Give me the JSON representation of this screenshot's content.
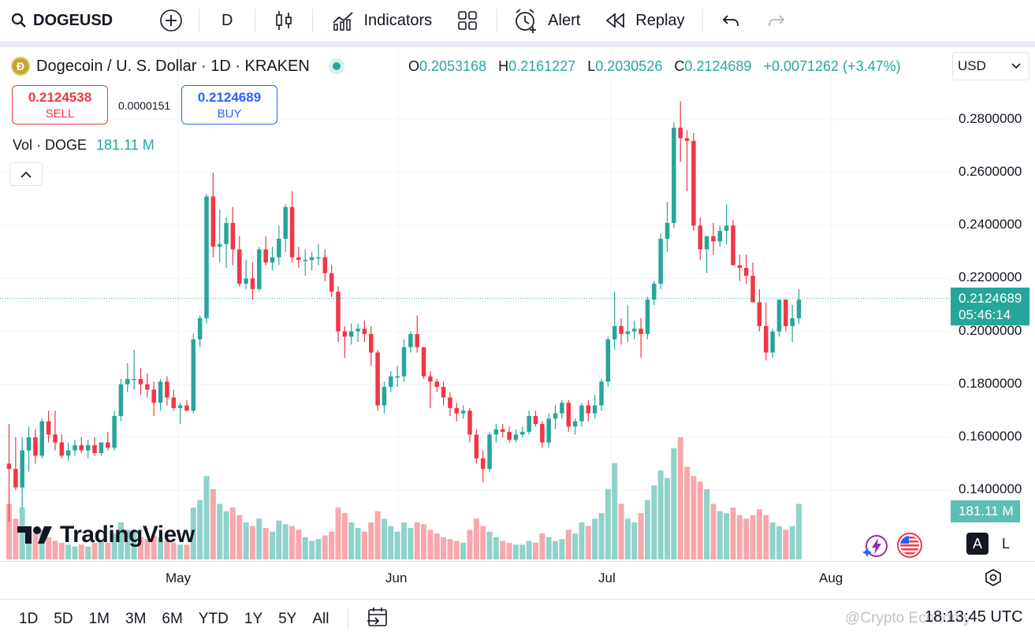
{
  "toolbar": {
    "symbol": "DOGEUSD",
    "interval": "D",
    "indicators_label": "Indicators",
    "alert_label": "Alert",
    "replay_label": "Replay"
  },
  "legend": {
    "title": "Dogecoin / U. S. Dollar · 1D · KRAKEN",
    "o_label": "O",
    "o": "0.2053168",
    "h_label": "H",
    "h": "0.2161227",
    "l_label": "L",
    "l": "0.2030526",
    "c_label": "C",
    "c": "0.2124689",
    "change": "+0.0071262 (+3.47%)"
  },
  "currency": "USD",
  "trade": {
    "sell_price": "0.2124538",
    "sell_label": "SELL",
    "spread": "0.0000151",
    "buy_price": "0.2124689",
    "buy_label": "BUY"
  },
  "volume": {
    "label": "Vol · DOGE",
    "value": "181.11 M"
  },
  "price_scale": [
    "0.2800000",
    "0.2600000",
    "0.2400000",
    "0.2200000",
    "0.2000000",
    "0.1800000",
    "0.1600000",
    "0.1400000"
  ],
  "last_price": {
    "price": "0.2124689",
    "countdown": "05:46:14"
  },
  "volume_badge": "181.11 M",
  "logo_text": "TradingView",
  "time_axis": [
    "May",
    "Jun",
    "Jul",
    "Aug"
  ],
  "panel_buttons": {
    "log": "L",
    "auto": "A"
  },
  "ranges": [
    "1D",
    "5D",
    "1M",
    "3M",
    "6M",
    "YTD",
    "1Y",
    "5Y",
    "All"
  ],
  "clock": "18:13:45 UTC",
  "watermark": "@Crypto Economy",
  "colors": {
    "up": "#26a69a",
    "down": "#f23645",
    "vol_up": "#8fd3ca",
    "vol_down": "#f7a8ad"
  },
  "chart_data": {
    "type": "candlestick",
    "ylim": [
      0.13,
      0.295
    ],
    "month_labels": [
      "May",
      "Jun",
      "Jul",
      "Aug"
    ],
    "candles": [
      [
        0.15,
        0.165,
        0.128,
        0.148,
        30
      ],
      [
        0.148,
        0.16,
        0.14,
        0.141,
        22
      ],
      [
        0.141,
        0.16,
        0.133,
        0.155,
        28
      ],
      [
        0.155,
        0.164,
        0.147,
        0.16,
        18
      ],
      [
        0.16,
        0.163,
        0.15,
        0.153,
        14
      ],
      [
        0.153,
        0.167,
        0.152,
        0.166,
        16
      ],
      [
        0.166,
        0.17,
        0.158,
        0.161,
        12
      ],
      [
        0.161,
        0.17,
        0.155,
        0.158,
        10
      ],
      [
        0.158,
        0.161,
        0.152,
        0.153,
        9
      ],
      [
        0.153,
        0.158,
        0.151,
        0.155,
        8
      ],
      [
        0.155,
        0.159,
        0.153,
        0.157,
        7
      ],
      [
        0.157,
        0.16,
        0.154,
        0.155,
        8
      ],
      [
        0.155,
        0.159,
        0.152,
        0.157,
        7
      ],
      [
        0.157,
        0.16,
        0.153,
        0.154,
        9
      ],
      [
        0.154,
        0.158,
        0.153,
        0.158,
        10
      ],
      [
        0.158,
        0.162,
        0.155,
        0.156,
        9
      ],
      [
        0.156,
        0.17,
        0.155,
        0.168,
        14
      ],
      [
        0.168,
        0.182,
        0.166,
        0.18,
        20
      ],
      [
        0.18,
        0.188,
        0.177,
        0.182,
        16
      ],
      [
        0.182,
        0.193,
        0.178,
        0.182,
        15
      ],
      [
        0.182,
        0.186,
        0.176,
        0.18,
        12
      ],
      [
        0.18,
        0.184,
        0.175,
        0.178,
        11
      ],
      [
        0.178,
        0.181,
        0.168,
        0.173,
        13
      ],
      [
        0.173,
        0.182,
        0.17,
        0.181,
        12
      ],
      [
        0.181,
        0.183,
        0.172,
        0.175,
        10
      ],
      [
        0.175,
        0.178,
        0.17,
        0.171,
        9
      ],
      [
        0.171,
        0.173,
        0.165,
        0.172,
        8
      ],
      [
        0.172,
        0.174,
        0.17,
        0.17,
        8
      ],
      [
        0.17,
        0.199,
        0.169,
        0.197,
        28
      ],
      [
        0.197,
        0.206,
        0.194,
        0.205,
        32
      ],
      [
        0.205,
        0.252,
        0.203,
        0.251,
        45
      ],
      [
        0.251,
        0.26,
        0.228,
        0.232,
        38
      ],
      [
        0.232,
        0.246,
        0.226,
        0.233,
        30
      ],
      [
        0.233,
        0.243,
        0.224,
        0.241,
        26
      ],
      [
        0.241,
        0.247,
        0.225,
        0.231,
        28
      ],
      [
        0.231,
        0.236,
        0.217,
        0.218,
        24
      ],
      [
        0.218,
        0.227,
        0.216,
        0.22,
        20
      ],
      [
        0.22,
        0.226,
        0.212,
        0.216,
        18
      ],
      [
        0.216,
        0.232,
        0.215,
        0.231,
        22
      ],
      [
        0.231,
        0.236,
        0.225,
        0.226,
        17
      ],
      [
        0.226,
        0.232,
        0.223,
        0.228,
        15
      ],
      [
        0.228,
        0.24,
        0.225,
        0.235,
        21
      ],
      [
        0.235,
        0.248,
        0.23,
        0.247,
        19
      ],
      [
        0.247,
        0.253,
        0.226,
        0.228,
        18
      ],
      [
        0.228,
        0.232,
        0.224,
        0.227,
        16
      ],
      [
        0.227,
        0.231,
        0.221,
        0.227,
        12
      ],
      [
        0.227,
        0.23,
        0.223,
        0.228,
        10
      ],
      [
        0.228,
        0.233,
        0.225,
        0.228,
        11
      ],
      [
        0.228,
        0.231,
        0.219,
        0.222,
        13
      ],
      [
        0.222,
        0.225,
        0.213,
        0.215,
        15
      ],
      [
        0.215,
        0.217,
        0.196,
        0.2,
        28
      ],
      [
        0.2,
        0.202,
        0.19,
        0.198,
        25
      ],
      [
        0.198,
        0.203,
        0.195,
        0.2,
        20
      ],
      [
        0.2,
        0.203,
        0.196,
        0.201,
        17
      ],
      [
        0.201,
        0.204,
        0.196,
        0.199,
        15
      ],
      [
        0.199,
        0.202,
        0.187,
        0.192,
        20
      ],
      [
        0.192,
        0.193,
        0.17,
        0.172,
        26
      ],
      [
        0.172,
        0.181,
        0.169,
        0.179,
        22
      ],
      [
        0.179,
        0.185,
        0.177,
        0.183,
        18
      ],
      [
        0.183,
        0.187,
        0.179,
        0.183,
        15
      ],
      [
        0.183,
        0.197,
        0.181,
        0.194,
        20
      ],
      [
        0.194,
        0.2,
        0.192,
        0.199,
        17
      ],
      [
        0.199,
        0.206,
        0.192,
        0.194,
        20
      ],
      [
        0.194,
        0.194,
        0.182,
        0.183,
        19
      ],
      [
        0.183,
        0.185,
        0.171,
        0.181,
        16
      ],
      [
        0.181,
        0.182,
        0.177,
        0.179,
        14
      ],
      [
        0.179,
        0.181,
        0.172,
        0.175,
        12
      ],
      [
        0.175,
        0.177,
        0.168,
        0.171,
        11
      ],
      [
        0.171,
        0.173,
        0.166,
        0.169,
        10
      ],
      [
        0.169,
        0.172,
        0.167,
        0.17,
        9
      ],
      [
        0.17,
        0.171,
        0.158,
        0.161,
        16
      ],
      [
        0.161,
        0.163,
        0.15,
        0.152,
        22
      ],
      [
        0.152,
        0.155,
        0.143,
        0.148,
        18
      ],
      [
        0.148,
        0.162,
        0.147,
        0.161,
        15
      ],
      [
        0.161,
        0.165,
        0.158,
        0.163,
        12
      ],
      [
        0.163,
        0.165,
        0.16,
        0.162,
        10
      ],
      [
        0.162,
        0.164,
        0.158,
        0.159,
        9
      ],
      [
        0.159,
        0.163,
        0.158,
        0.161,
        8
      ],
      [
        0.161,
        0.164,
        0.16,
        0.162,
        8
      ],
      [
        0.162,
        0.17,
        0.161,
        0.168,
        10
      ],
      [
        0.168,
        0.17,
        0.164,
        0.165,
        9
      ],
      [
        0.165,
        0.166,
        0.156,
        0.158,
        14
      ],
      [
        0.158,
        0.169,
        0.156,
        0.167,
        12
      ],
      [
        0.167,
        0.172,
        0.163,
        0.169,
        10
      ],
      [
        0.169,
        0.174,
        0.167,
        0.173,
        11
      ],
      [
        0.173,
        0.174,
        0.162,
        0.164,
        16
      ],
      [
        0.164,
        0.167,
        0.161,
        0.166,
        14
      ],
      [
        0.166,
        0.173,
        0.164,
        0.172,
        20
      ],
      [
        0.172,
        0.174,
        0.166,
        0.169,
        18
      ],
      [
        0.169,
        0.176,
        0.167,
        0.172,
        22
      ],
      [
        0.172,
        0.182,
        0.17,
        0.181,
        25
      ],
      [
        0.181,
        0.198,
        0.179,
        0.197,
        38
      ],
      [
        0.197,
        0.215,
        0.193,
        0.202,
        52
      ],
      [
        0.202,
        0.205,
        0.195,
        0.199,
        30
      ],
      [
        0.199,
        0.21,
        0.196,
        0.2,
        22
      ],
      [
        0.2,
        0.204,
        0.197,
        0.201,
        20
      ],
      [
        0.201,
        0.205,
        0.19,
        0.199,
        25
      ],
      [
        0.199,
        0.213,
        0.197,
        0.212,
        32
      ],
      [
        0.212,
        0.219,
        0.21,
        0.218,
        40
      ],
      [
        0.218,
        0.237,
        0.216,
        0.235,
        48
      ],
      [
        0.235,
        0.249,
        0.23,
        0.241,
        44
      ],
      [
        0.241,
        0.279,
        0.239,
        0.277,
        60
      ],
      [
        0.277,
        0.287,
        0.264,
        0.273,
        66
      ],
      [
        0.273,
        0.276,
        0.253,
        0.272,
        50
      ],
      [
        0.272,
        0.275,
        0.238,
        0.24,
        45
      ],
      [
        0.24,
        0.243,
        0.227,
        0.231,
        42
      ],
      [
        0.231,
        0.235,
        0.222,
        0.236,
        38
      ],
      [
        0.236,
        0.241,
        0.229,
        0.234,
        30
      ],
      [
        0.234,
        0.24,
        0.232,
        0.238,
        26
      ],
      [
        0.238,
        0.248,
        0.233,
        0.24,
        25
      ],
      [
        0.24,
        0.242,
        0.225,
        0.225,
        28
      ],
      [
        0.225,
        0.229,
        0.219,
        0.224,
        24
      ],
      [
        0.224,
        0.229,
        0.218,
        0.221,
        22
      ],
      [
        0.221,
        0.226,
        0.211,
        0.211,
        24
      ],
      [
        0.211,
        0.216,
        0.2,
        0.202,
        27
      ],
      [
        0.202,
        0.211,
        0.189,
        0.192,
        24
      ],
      [
        0.192,
        0.201,
        0.19,
        0.2,
        20
      ],
      [
        0.2,
        0.212,
        0.198,
        0.212,
        18
      ],
      [
        0.212,
        0.212,
        0.2,
        0.202,
        16
      ],
      [
        0.202,
        0.21,
        0.196,
        0.205,
        18
      ],
      [
        0.205,
        0.216,
        0.203,
        0.212,
        30
      ]
    ]
  }
}
